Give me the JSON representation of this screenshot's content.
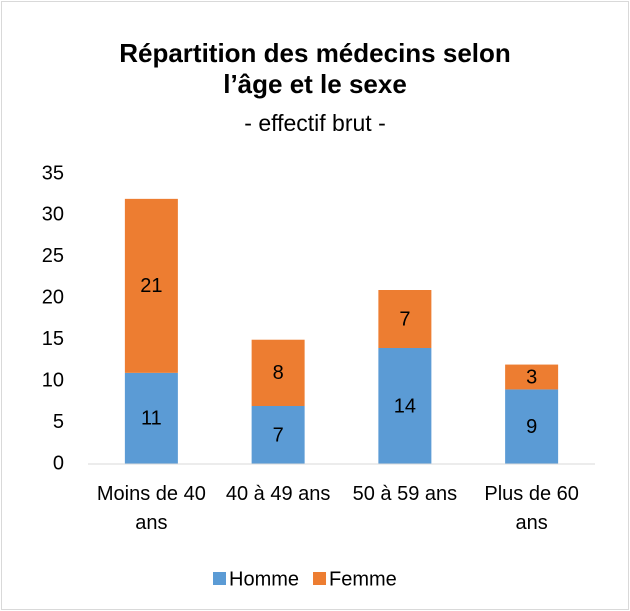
{
  "chart_data": {
    "type": "stacked_bar",
    "title": "Répartition des médecins selon l’âge et le sexe",
    "subtitle": "- effectif brut -",
    "categories": [
      "Moins de 40 ans",
      "40 à 49 ans",
      "50 à 59 ans",
      "Plus de 60 ans"
    ],
    "series": [
      {
        "name": "Homme",
        "color": "#5b9bd5",
        "values": [
          11,
          7,
          14,
          9
        ]
      },
      {
        "name": "Femme",
        "color": "#ed7d31",
        "values": [
          21,
          8,
          7,
          3
        ]
      }
    ],
    "ylim": [
      0,
      35
    ],
    "yticks": [
      0,
      5,
      10,
      15,
      20,
      25,
      30,
      35
    ],
    "grid": false,
    "legend": "bottom"
  }
}
